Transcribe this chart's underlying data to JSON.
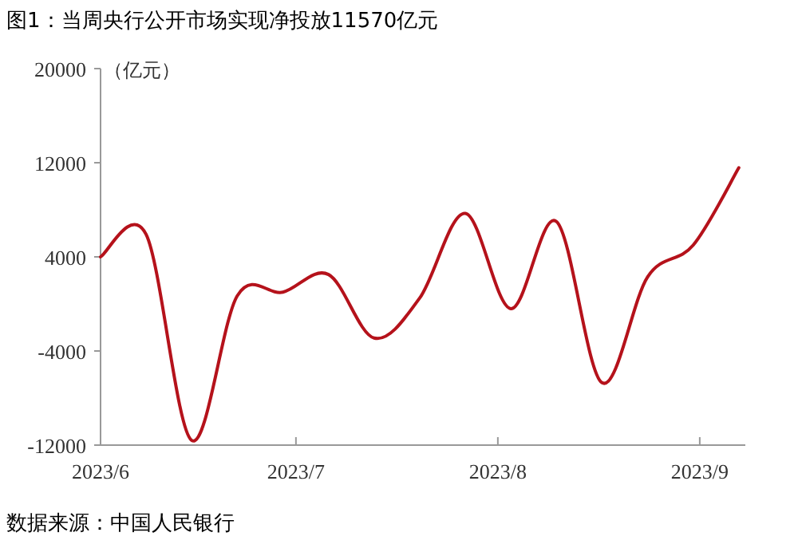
{
  "chart_data": {
    "type": "line",
    "title": "图1：当周央行公开市场实现净投放11570亿元",
    "ylabel": "（亿元）",
    "annotations": [
      "数据来源：中国人民银行"
    ],
    "x": [
      "2023-06-01",
      "2023-06-08",
      "2023-06-15",
      "2023-06-22",
      "2023-06-29",
      "2023-07-06",
      "2023-07-13",
      "2023-07-20",
      "2023-07-27",
      "2023-08-03",
      "2023-08-10",
      "2023-08-17",
      "2023-08-24",
      "2023-08-31",
      "2023-09-07"
    ],
    "series": [
      {
        "color": "#b5121b",
        "values": [
          4000,
          5900,
          -11600,
          700,
          1000,
          2500,
          -2900,
          500,
          7700,
          -400,
          7000,
          -6700,
          2300,
          5000,
          11570
        ]
      }
    ],
    "xlim": [
      "2023-06-01",
      "2023-09-08"
    ],
    "xticks": [
      {
        "value": "2023-06-01",
        "label": "2023/6"
      },
      {
        "value": "2023-07-01",
        "label": "2023/7"
      },
      {
        "value": "2023-08-01",
        "label": "2023/8"
      },
      {
        "value": "2023-09-01",
        "label": "2023/9"
      }
    ],
    "ylim": [
      -12000,
      20000
    ],
    "yticks": [
      -12000,
      -4000,
      4000,
      12000,
      20000
    ],
    "grid": false,
    "marker": "none",
    "line_style": "solid"
  }
}
